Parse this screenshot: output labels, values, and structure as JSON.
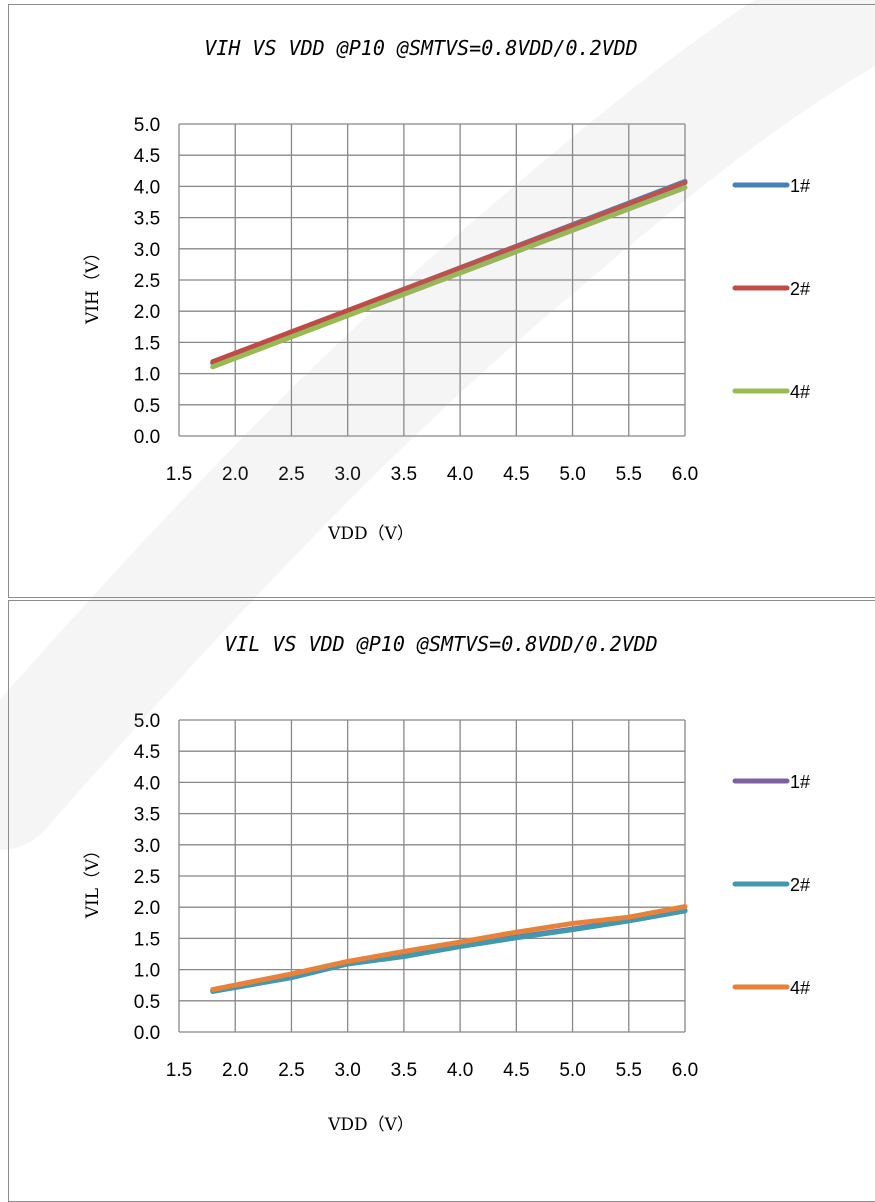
{
  "chart_data": [
    {
      "type": "line",
      "title": "VIH VS VDD @P10 @SMTVS=0.8VDD/0.2VDD",
      "xlabel": "VDD（V）",
      "ylabel": "VIH（V）",
      "xlim": [
        1.5,
        6.0
      ],
      "ylim": [
        0.0,
        5.0
      ],
      "x_ticks": [
        "1.5",
        "2.0",
        "2.5",
        "3.0",
        "3.5",
        "4.0",
        "4.5",
        "5.0",
        "5.5",
        "6.0"
      ],
      "y_ticks": [
        "0.0",
        "0.5",
        "1.0",
        "1.5",
        "2.0",
        "2.5",
        "3.0",
        "3.5",
        "4.0",
        "4.5",
        "5.0"
      ],
      "grid": true,
      "legend_position": "right",
      "x": [
        1.8,
        6.0
      ],
      "series": [
        {
          "name": "1#",
          "color": "#4a7ebb",
          "values": [
            1.17,
            4.08
          ]
        },
        {
          "name": "2#",
          "color": "#be4b48",
          "values": [
            1.19,
            4.06
          ]
        },
        {
          "name": "4#",
          "color": "#98b954",
          "values": [
            1.11,
            3.98
          ]
        }
      ]
    },
    {
      "type": "line",
      "title": "VIL VS VDD @P10 @SMTVS=0.8VDD/0.2VDD",
      "xlabel": "VDD（V）",
      "ylabel": "VIL（V）",
      "xlim": [
        1.5,
        6.0
      ],
      "ylim": [
        0.0,
        5.0
      ],
      "x_ticks": [
        "1.5",
        "2.0",
        "2.5",
        "3.0",
        "3.5",
        "4.0",
        "4.5",
        "5.0",
        "5.5",
        "6.0"
      ],
      "y_ticks": [
        "0.0",
        "0.5",
        "1.0",
        "1.5",
        "2.0",
        "2.5",
        "3.0",
        "3.5",
        "4.0",
        "4.5",
        "5.0"
      ],
      "grid": true,
      "legend_position": "right",
      "x": [
        1.8,
        2.5,
        3.0,
        3.5,
        4.0,
        4.5,
        5.0,
        5.5,
        6.0
      ],
      "series": [
        {
          "name": "1#",
          "color": "#7d60a0",
          "values": [
            0.66,
            0.88,
            1.1,
            1.22,
            1.38,
            1.52,
            1.65,
            1.79,
            1.95
          ]
        },
        {
          "name": "2#",
          "color": "#4198af",
          "values": [
            0.65,
            0.87,
            1.09,
            1.21,
            1.37,
            1.51,
            1.64,
            1.78,
            1.94
          ]
        },
        {
          "name": "4#",
          "color": "#e8823a",
          "values": [
            0.68,
            0.93,
            1.13,
            1.29,
            1.44,
            1.6,
            1.74,
            1.84,
            2.01
          ]
        }
      ]
    }
  ]
}
